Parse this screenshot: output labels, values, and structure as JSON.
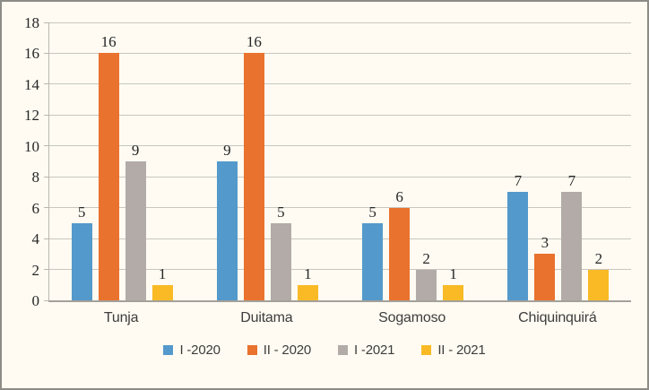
{
  "frame": {
    "background": "#FFFBF2",
    "border_color": "#8E8C86",
    "gridline_color": "#C8C6C0",
    "axis_line_color": "#A3A19A",
    "number_text_color": "#262626",
    "label_text_color": "#3D3D3D"
  },
  "chart_data": {
    "type": "bar",
    "title": "",
    "xlabel": "",
    "ylabel": "",
    "categories": [
      "Tunja",
      "Duitama",
      "Sogamoso",
      "Chiquinquirá"
    ],
    "series": [
      {
        "name": "I -2020",
        "color": "#5499CB",
        "values": [
          5,
          9,
          5,
          7
        ]
      },
      {
        "name": "II - 2020",
        "color": "#E9722E",
        "values": [
          16,
          16,
          6,
          3
        ]
      },
      {
        "name": "I -2021",
        "color": "#B2ABA7",
        "values": [
          9,
          5,
          2,
          7
        ]
      },
      {
        "name": "II - 2021",
        "color": "#F9BA26",
        "values": [
          1,
          1,
          1,
          2
        ]
      }
    ],
    "data_labels": true,
    "ylim": [
      0,
      18
    ],
    "yticks": [
      0,
      2,
      4,
      6,
      8,
      10,
      12,
      14,
      16,
      18
    ],
    "grid": true,
    "legend_position": "bottom"
  }
}
